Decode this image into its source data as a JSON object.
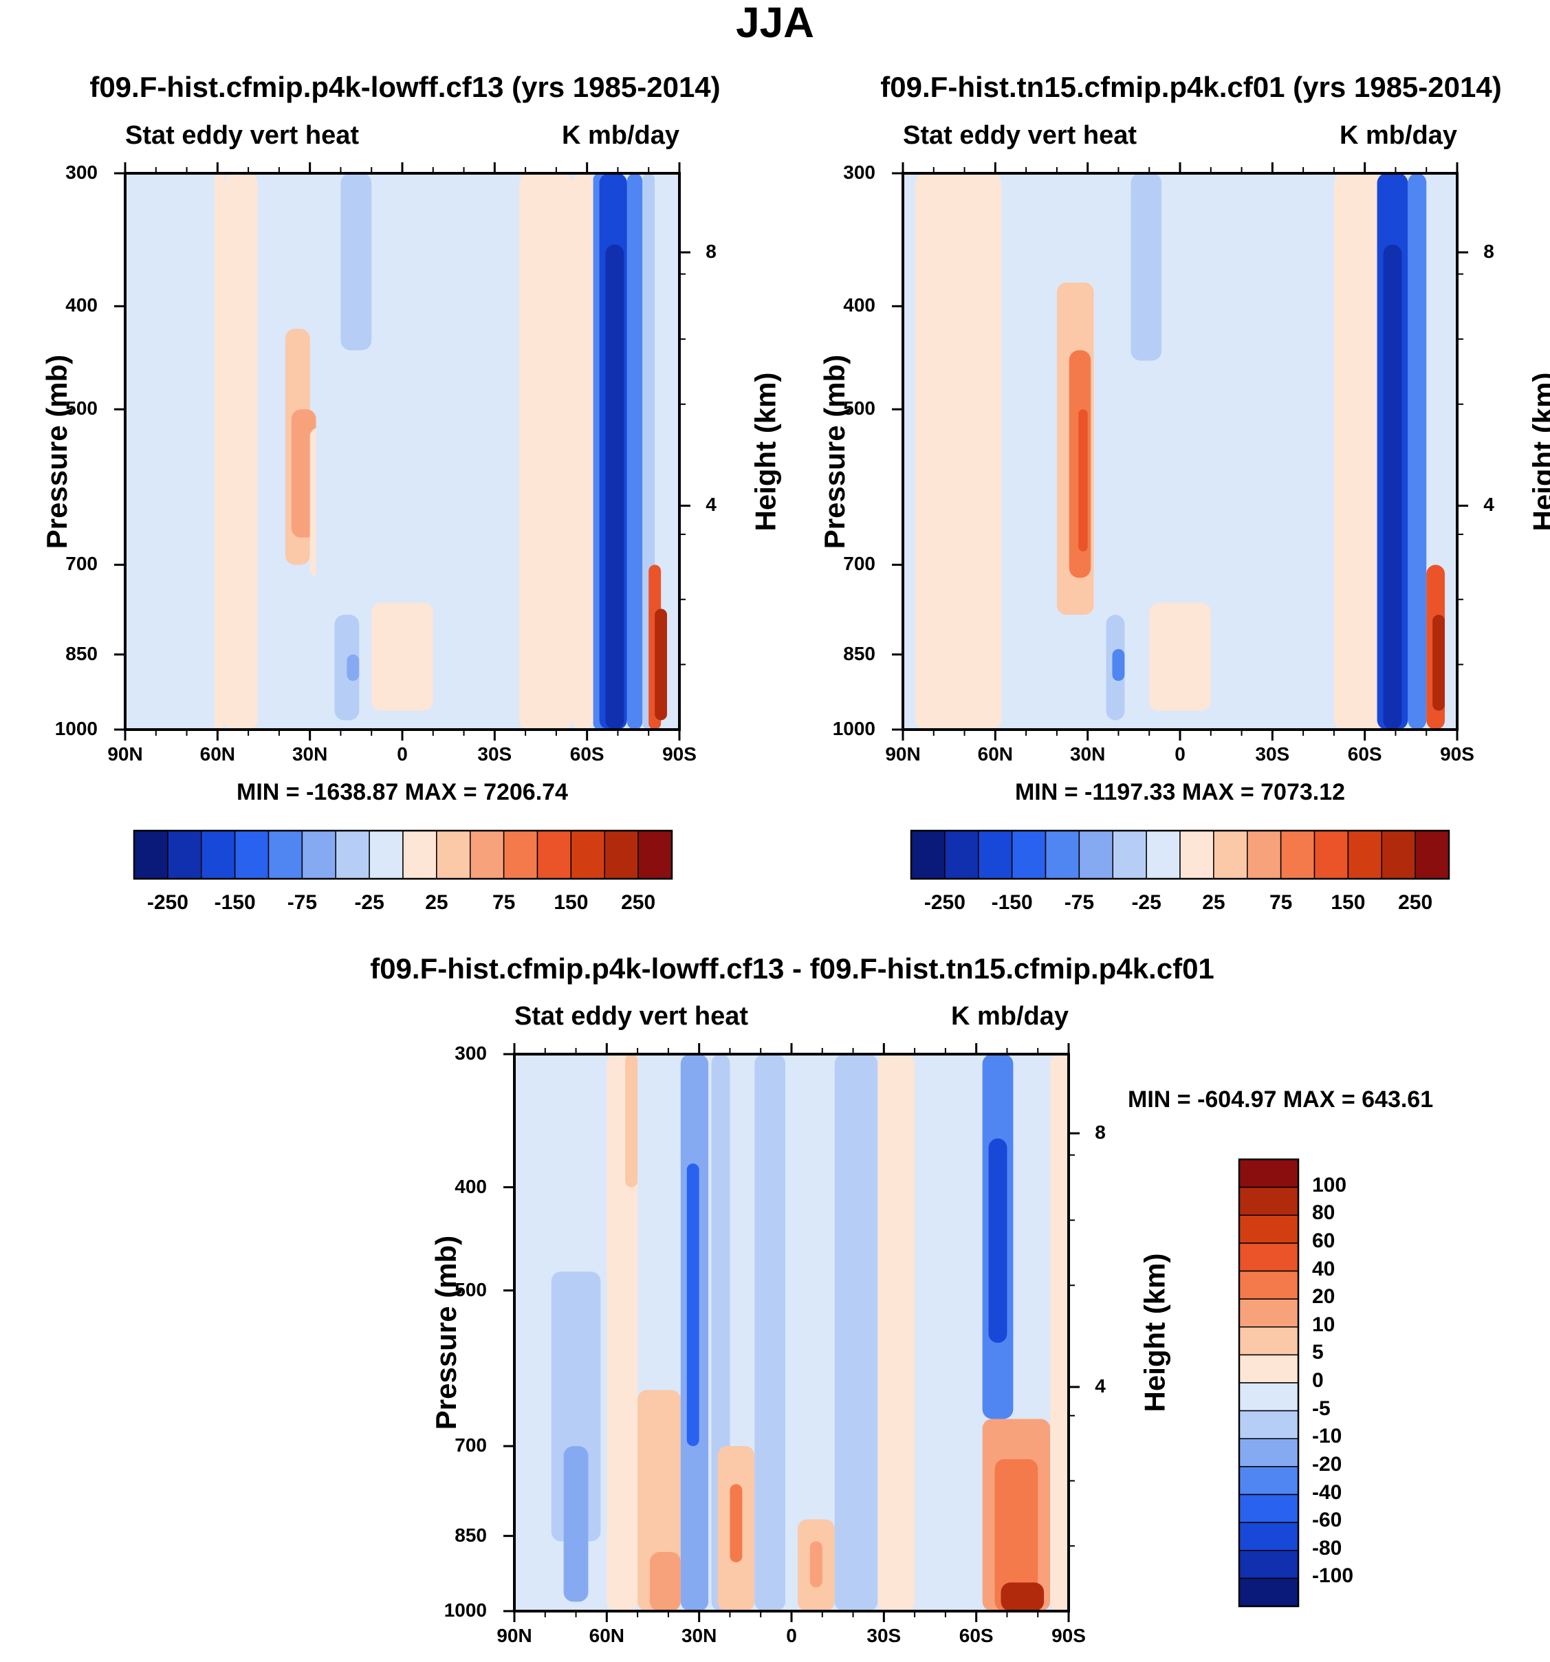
{
  "figure_title": "JJA",
  "chart_data": [
    {
      "type": "heatmap",
      "title": "f09.F-hist.cfmip.p4k-lowff.cf13 (yrs 1985-2014)",
      "subtitle_left": "Stat eddy vert heat",
      "subtitle_right": "K mb/day",
      "xlabel": "",
      "ylabel": "Pressure (mb)",
      "ylabel_right": "Height (km)",
      "x_ticks": [
        "90N",
        "60N",
        "30N",
        "0",
        "30S",
        "60S",
        "90S"
      ],
      "y_ticks": [
        "300",
        "400",
        "500",
        "700",
        "850",
        "1000"
      ],
      "y_ticks_right": [
        "8",
        "4"
      ],
      "ylim": [
        1000,
        300
      ],
      "yscale": "log",
      "stats": "MIN = -1638.87  MAX = 7206.74",
      "colorbar_labels": [
        "-250",
        "-150",
        "-75",
        "-25",
        "25",
        "75",
        "150",
        "250"
      ],
      "colorbar_orientation": "horizontal"
    },
    {
      "type": "heatmap",
      "title": "f09.F-hist.tn15.cfmip.p4k.cf01 (yrs 1985-2014)",
      "subtitle_left": "Stat eddy vert heat",
      "subtitle_right": "K mb/day",
      "xlabel": "",
      "ylabel": "Pressure (mb)",
      "ylabel_right": "Height (km)",
      "x_ticks": [
        "90N",
        "60N",
        "30N",
        "0",
        "30S",
        "60S",
        "90S"
      ],
      "y_ticks": [
        "300",
        "400",
        "500",
        "700",
        "850",
        "1000"
      ],
      "y_ticks_right": [
        "8",
        "4"
      ],
      "ylim": [
        1000,
        300
      ],
      "yscale": "log",
      "stats": "MIN = -1197.33  MAX = 7073.12",
      "colorbar_labels": [
        "-250",
        "-150",
        "-75",
        "-25",
        "25",
        "75",
        "150",
        "250"
      ],
      "colorbar_orientation": "horizontal"
    },
    {
      "type": "heatmap",
      "title": "f09.F-hist.cfmip.p4k-lowff.cf13 - f09.F-hist.tn15.cfmip.p4k.cf01",
      "subtitle_left": "Stat eddy vert heat",
      "subtitle_right": "K mb/day",
      "xlabel": "",
      "ylabel": "Pressure (mb)",
      "ylabel_right": "Height (km)",
      "x_ticks": [
        "90N",
        "60N",
        "30N",
        "0",
        "30S",
        "60S",
        "90S"
      ],
      "y_ticks": [
        "300",
        "400",
        "500",
        "700",
        "850",
        "1000"
      ],
      "y_ticks_right": [
        "8",
        "4"
      ],
      "ylim": [
        1000,
        300
      ],
      "yscale": "log",
      "stats": "MIN = -604.97  MAX = 643.61",
      "colorbar_labels": [
        "100",
        "80",
        "60",
        "40",
        "20",
        "10",
        "5",
        "0",
        "-5",
        "-10",
        "-20",
        "-40",
        "-60",
        "-80",
        "-100"
      ],
      "colorbar_orientation": "vertical"
    }
  ],
  "colorbar_colors": [
    "#0a1a7a",
    "#1030b0",
    "#1848d8",
    "#2a62f0",
    "#4f86f2",
    "#86aaf2",
    "#b6cef6",
    "#dbe8fa",
    "#fde6d6",
    "#fbc8a8",
    "#f8a27c",
    "#f47a4c",
    "#ea5428",
    "#d23e12",
    "#b22a0c",
    "#8a0e0e"
  ]
}
